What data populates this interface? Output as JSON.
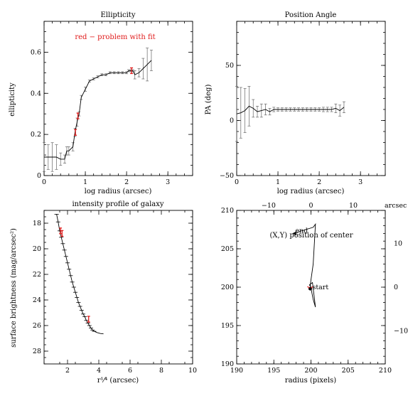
{
  "colors": {
    "problem": "#e01b1b",
    "line": "#000000",
    "errorbar": "#666666",
    "background": "#ffffff"
  },
  "chart_data": [
    {
      "type": "line",
      "title": "Ellipticity",
      "annotation": "red − problem with fit",
      "xlabel": "log radius (arcsec)",
      "ylabel": "ellipticity",
      "xlim": [
        0,
        3.6
      ],
      "ylim": [
        0,
        0.75
      ],
      "xticks": [
        "0",
        "1",
        "2",
        "3"
      ],
      "yticks": [
        "0",
        "0.2",
        "0.4",
        "0.6"
      ],
      "x": [
        0.0,
        0.1,
        0.2,
        0.3,
        0.4,
        0.5,
        0.55,
        0.6,
        0.7,
        0.75,
        0.8,
        0.85,
        0.9,
        1.0,
        1.1,
        1.2,
        1.3,
        1.4,
        1.5,
        1.6,
        1.7,
        1.8,
        1.9,
        2.0,
        2.05,
        2.1,
        2.15,
        2.2,
        2.3,
        2.4,
        2.5,
        2.6
      ],
      "y": [
        0.09,
        0.09,
        0.09,
        0.09,
        0.08,
        0.08,
        0.12,
        0.12,
        0.14,
        0.21,
        0.26,
        0.3,
        0.38,
        0.42,
        0.46,
        0.47,
        0.48,
        0.49,
        0.49,
        0.5,
        0.5,
        0.5,
        0.5,
        0.5,
        0.51,
        0.51,
        0.51,
        0.49,
        0.5,
        0.52,
        0.54,
        0.56
      ],
      "err": [
        0.07,
        0.06,
        0.07,
        0.06,
        0.03,
        0.02,
        0.02,
        0.02,
        0.02,
        0.02,
        0.02,
        0.01,
        0.01,
        0.01,
        0.005,
        0.005,
        0.005,
        0.005,
        0.005,
        0.005,
        0.005,
        0.005,
        0.005,
        0.005,
        0.005,
        0.005,
        0.005,
        0.02,
        0.02,
        0.05,
        0.08,
        0.05
      ],
      "red_x": [
        0.76,
        0.82,
        2.12
      ],
      "red_y": [
        0.21,
        0.29,
        0.51
      ]
    },
    {
      "type": "line",
      "title": "Position Angle",
      "xlabel": "log radius (arcsec)",
      "ylabel": "PA (deg)",
      "xlim": [
        0,
        3.6
      ],
      "ylim": [
        -50,
        90
      ],
      "xticks": [
        "0",
        "1",
        "2",
        "3"
      ],
      "yticks": [
        "−50",
        "0",
        "50"
      ],
      "x": [
        0.0,
        0.1,
        0.2,
        0.3,
        0.4,
        0.5,
        0.6,
        0.7,
        0.8,
        0.9,
        1.0,
        1.1,
        1.2,
        1.3,
        1.4,
        1.5,
        1.6,
        1.7,
        1.8,
        1.9,
        2.0,
        2.1,
        2.2,
        2.3,
        2.4,
        2.5,
        2.6
      ],
      "y": [
        6,
        7,
        9,
        13,
        11,
        8,
        9,
        10,
        8,
        10,
        10,
        10,
        10,
        10,
        10,
        10,
        10,
        10,
        10,
        10,
        10,
        10,
        10,
        10,
        11,
        9,
        12
      ],
      "err": [
        25,
        23,
        20,
        18,
        8,
        5,
        6,
        5,
        3,
        2,
        1.5,
        1.5,
        1.5,
        1.5,
        1.5,
        1.5,
        1.5,
        1.5,
        1.5,
        1.5,
        1.5,
        2,
        2,
        2,
        4,
        5,
        5
      ]
    },
    {
      "type": "line",
      "title": "intensity profile of galaxy",
      "xlabel": "r¹⁄⁴ (arcsec)",
      "ylabel": "surface brightness (mag/arcsec²)",
      "xlim": [
        0.5,
        10
      ],
      "ylim": [
        29,
        17
      ],
      "xticks": [
        "2",
        "4",
        "6",
        "8",
        "10"
      ],
      "yticks": [
        "18",
        "20",
        "22",
        "24",
        "26",
        "28"
      ],
      "x": [
        1.3,
        1.4,
        1.5,
        1.6,
        1.7,
        1.8,
        1.9,
        2.0,
        2.1,
        2.2,
        2.3,
        2.4,
        2.5,
        2.6,
        2.7,
        2.8,
        2.9,
        3.0,
        3.1,
        3.2,
        3.3,
        3.4,
        3.5,
        3.6,
        3.7,
        3.9,
        4.1,
        4.3
      ],
      "y": [
        17.3,
        17.9,
        18.6,
        19.1,
        19.6,
        20.1,
        20.6,
        21.1,
        21.6,
        22.1,
        22.6,
        23.0,
        23.4,
        23.8,
        24.2,
        24.5,
        24.8,
        25.1,
        25.3,
        25.6,
        25.8,
        26.0,
        26.2,
        26.35,
        26.45,
        26.55,
        26.62,
        26.65
      ],
      "red_x": [
        1.55,
        1.65,
        3.35
      ],
      "red_y": [
        18.6,
        18.8,
        25.5
      ]
    },
    {
      "type": "line",
      "title": "(X,Y) position of center",
      "xlabel": "radius (pixels)",
      "xlim": [
        190,
        210
      ],
      "ylim": [
        190,
        210
      ],
      "xticks": [
        "190",
        "195",
        "200",
        "205",
        "210"
      ],
      "yticks": [
        "190",
        "195",
        "200",
        "205",
        "210"
      ],
      "top_ticks": [
        "−10",
        "0",
        "10"
      ],
      "right_ticks": [
        "10",
        "0",
        "−10"
      ],
      "top_right_label": "arcsec",
      "start_label": "start",
      "end_label": "end",
      "x": [
        200.0,
        199.8,
        200.2,
        200.6,
        200.3,
        200.1,
        199.9,
        200.3,
        200.6,
        200.3,
        197.6
      ],
      "y": [
        200.0,
        200.3,
        200.6,
        197.4,
        198.4,
        199.4,
        200.3,
        203.0,
        208.2,
        207.8,
        207.0
      ],
      "start_x": 199.9,
      "start_y": 199.8,
      "end_x": 197.5,
      "end_y": 207.0
    }
  ]
}
